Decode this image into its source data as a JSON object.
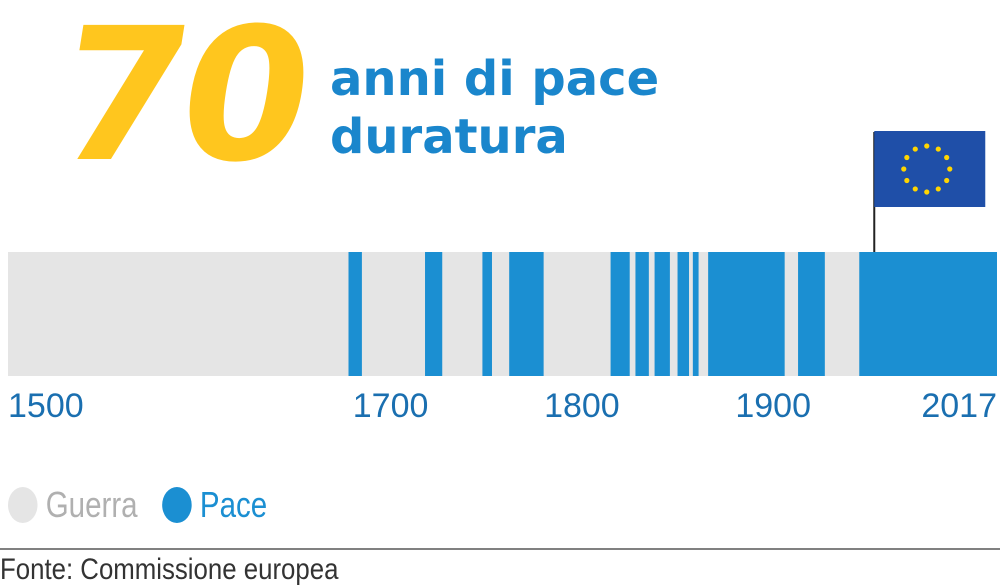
{
  "colors": {
    "accent_yellow": "#FFC61E",
    "title_blue": "#1A86CC",
    "war": "#E5E5E5",
    "peace": "#1B8FD2",
    "axis_text": "#1A6FB0",
    "flag_blue": "#1F4FA8",
    "flag_star": "#FFD500"
  },
  "headline": {
    "number": "70",
    "line1": "anni di pace",
    "line2": "duratura"
  },
  "flag": {
    "icon": "eu-flag-icon"
  },
  "chart_data": {
    "type": "timeline",
    "x_range": [
      1500,
      2017
    ],
    "tick_labels": [
      "1500",
      "1700",
      "1800",
      "1900",
      "2017"
    ],
    "categories": [
      "Guerra",
      "Pace"
    ],
    "peace_periods": [
      [
        1678,
        1685
      ],
      [
        1718,
        1727
      ],
      [
        1748,
        1753
      ],
      [
        1762,
        1780
      ],
      [
        1815,
        1825
      ],
      [
        1828,
        1835
      ],
      [
        1838,
        1846
      ],
      [
        1850,
        1856
      ],
      [
        1858,
        1861
      ],
      [
        1866,
        1906
      ],
      [
        1913,
        1927
      ],
      [
        1945,
        2017
      ]
    ]
  },
  "legend": {
    "war_label": "Guerra",
    "peace_label": "Pace"
  },
  "source": "Fonte: Commissione europea"
}
